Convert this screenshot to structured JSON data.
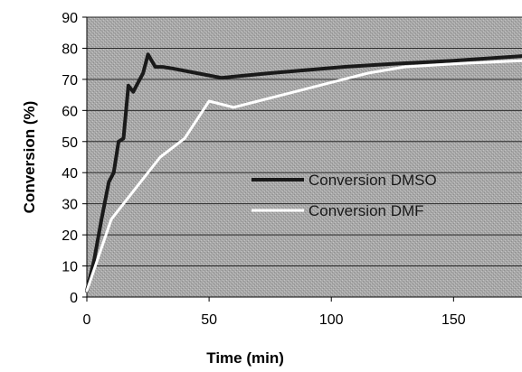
{
  "chart_data": {
    "type": "line",
    "title": "",
    "xlabel": "Time (min)",
    "ylabel": "Conversion (%)",
    "xlim": [
      0,
      178
    ],
    "ylim": [
      0,
      90
    ],
    "x_ticks": [
      0,
      50,
      100,
      150
    ],
    "y_ticks": [
      0,
      10,
      20,
      30,
      40,
      50,
      60,
      70,
      80,
      90
    ],
    "grid": "horizontal",
    "legend_position": "center-right",
    "plot_background": "#a9a9a9",
    "series": [
      {
        "name": "Conversion DMSO",
        "color": "#1a1a1a",
        "x": [
          0,
          3,
          6,
          9,
          11,
          13,
          15,
          17,
          19,
          21,
          23,
          25,
          28,
          31,
          35,
          45,
          55,
          75,
          105,
          125,
          150,
          178
        ],
        "y": [
          2,
          12,
          25,
          37,
          40,
          50,
          51,
          68,
          66,
          69,
          72,
          78,
          74,
          74,
          73.5,
          72,
          70.5,
          72,
          74,
          75,
          76,
          77.5
        ]
      },
      {
        "name": "Conversion DMF",
        "color": "#ffffff",
        "x": [
          0,
          10,
          20,
          30,
          40,
          50,
          60,
          70,
          85,
          100,
          115,
          130,
          150,
          178
        ],
        "y": [
          2,
          25,
          35,
          45,
          51,
          63,
          61,
          63,
          66,
          69,
          72,
          74,
          75,
          76
        ]
      }
    ]
  }
}
